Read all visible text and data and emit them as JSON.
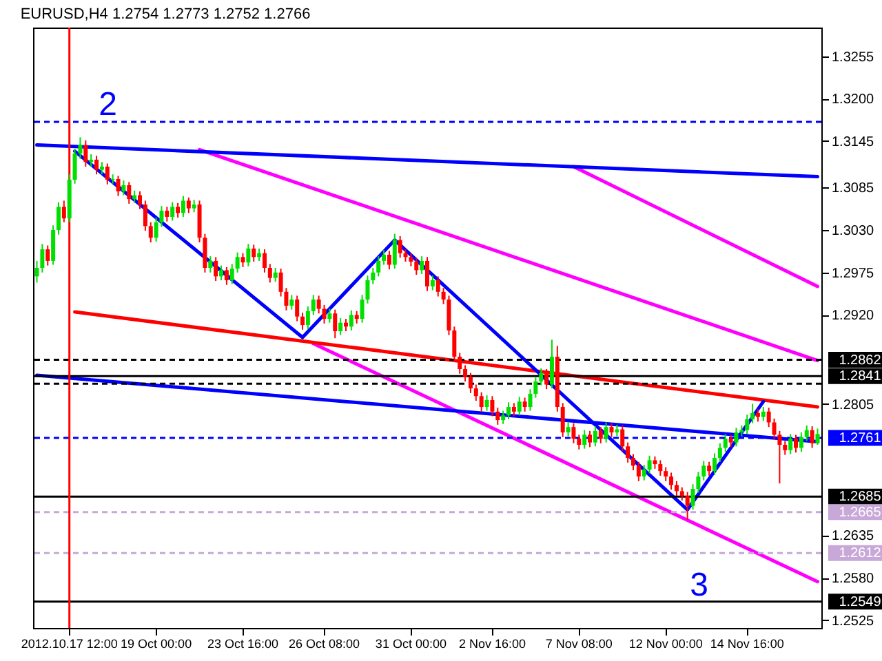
{
  "chart_data": {
    "type": "candlestick",
    "title": "EURUSD,H4  1.2754 1.2773 1.2752 1.2766",
    "categories": [
      null,
      null,
      null,
      null,
      null,
      null,
      "2012.10.17 12:00",
      null,
      null,
      null,
      null,
      null,
      null,
      null,
      null,
      null,
      null,
      null,
      null,
      null,
      null,
      null,
      "19 Oct 00:00",
      null,
      null,
      null,
      null,
      null,
      null,
      null,
      null,
      null,
      null,
      null,
      null,
      null,
      null,
      null,
      "23 Oct 16:00",
      null,
      null,
      null,
      null,
      null,
      null,
      null,
      null,
      null,
      null,
      null,
      null,
      null,
      null,
      "26 Oct 08:00",
      null,
      null,
      null,
      null,
      null,
      null,
      null,
      null,
      null,
      null,
      null,
      null,
      null,
      null,
      null,
      "31 Oct 00:00",
      null,
      null,
      null,
      null,
      null,
      null,
      null,
      null,
      null,
      null,
      null,
      null,
      null,
      null,
      "2 Nov 16:00",
      null,
      null,
      null,
      null,
      null,
      null,
      null,
      null,
      null,
      null,
      null,
      null,
      null,
      null,
      null,
      "7 Nov 08:00",
      null,
      null,
      null,
      null,
      null,
      null,
      null,
      null,
      null,
      null,
      null,
      null,
      null,
      null,
      null,
      "12 Nov 00:00",
      null,
      null,
      null,
      null,
      null,
      null,
      null,
      null,
      null,
      null,
      null,
      null,
      null,
      null,
      "14 Nov 16:00",
      null,
      null,
      null,
      null,
      null,
      null,
      null,
      null,
      null,
      null,
      null,
      null,
      null
    ],
    "ohlc": [
      [
        1.297,
        1.299,
        1.2962,
        1.2981
      ],
      [
        1.2981,
        1.3012,
        1.2975,
        1.3005
      ],
      [
        1.3005,
        1.301,
        1.2984,
        1.299
      ],
      [
        1.299,
        1.3036,
        1.2985,
        1.303
      ],
      [
        1.303,
        1.3066,
        1.3024,
        1.306
      ],
      [
        1.306,
        1.3068,
        1.304,
        1.3045
      ],
      [
        1.3045,
        1.3102,
        1.304,
        1.3095
      ],
      [
        1.3095,
        1.3135,
        1.309,
        1.3129
      ],
      [
        1.3129,
        1.315,
        1.3122,
        1.314
      ],
      [
        1.314,
        1.3146,
        1.3112,
        1.3118
      ],
      [
        1.3118,
        1.3128,
        1.3112,
        1.3121
      ],
      [
        1.3121,
        1.3126,
        1.3102,
        1.3108
      ],
      [
        1.3108,
        1.3118,
        1.3102,
        1.3112
      ],
      [
        1.3112,
        1.3116,
        1.3089,
        1.3095
      ],
      [
        1.3095,
        1.3102,
        1.309,
        1.3096
      ],
      [
        1.3096,
        1.31,
        1.3074,
        1.308
      ],
      [
        1.308,
        1.3094,
        1.3075,
        1.3088
      ],
      [
        1.3088,
        1.3092,
        1.3064,
        1.307
      ],
      [
        1.307,
        1.3081,
        1.3065,
        1.3075
      ],
      [
        1.3075,
        1.308,
        1.3057,
        1.3063
      ],
      [
        1.3063,
        1.3068,
        1.3029,
        1.3035
      ],
      [
        1.3035,
        1.304,
        1.3014,
        1.302
      ],
      [
        1.302,
        1.3046,
        1.3015,
        1.304
      ],
      [
        1.304,
        1.3061,
        1.3034,
        1.3055
      ],
      [
        1.3055,
        1.306,
        1.3041,
        1.3047
      ],
      [
        1.3047,
        1.3066,
        1.3042,
        1.306
      ],
      [
        1.306,
        1.3065,
        1.3046,
        1.3052
      ],
      [
        1.3052,
        1.3074,
        1.3047,
        1.3068
      ],
      [
        1.3068,
        1.3072,
        1.3052,
        1.3058
      ],
      [
        1.3058,
        1.3069,
        1.3053,
        1.3063
      ],
      [
        1.3063,
        1.3068,
        1.3014,
        1.302
      ],
      [
        1.302,
        1.3025,
        1.2975,
        1.2981
      ],
      [
        1.2981,
        1.2996,
        1.2975,
        1.299
      ],
      [
        1.299,
        1.2995,
        1.2964,
        1.297
      ],
      [
        1.297,
        1.2984,
        1.2965,
        1.2978
      ],
      [
        1.2978,
        1.2982,
        1.2959,
        1.2965
      ],
      [
        1.2965,
        1.2986,
        1.296,
        1.298
      ],
      [
        1.298,
        1.3001,
        1.2975,
        1.2995
      ],
      [
        1.2995,
        1.3,
        1.2982,
        1.2988
      ],
      [
        1.2988,
        1.3012,
        1.2983,
        1.3006
      ],
      [
        1.3006,
        1.3011,
        1.2989,
        1.2995
      ],
      [
        1.2995,
        1.3006,
        1.299,
        1.3
      ],
      [
        1.3,
        1.3005,
        1.2975,
        1.2981
      ],
      [
        1.2981,
        1.2986,
        1.2962,
        1.2968
      ],
      [
        1.2968,
        1.2981,
        1.2963,
        1.2975
      ],
      [
        1.2975,
        1.298,
        1.2944,
        1.295
      ],
      [
        1.295,
        1.2955,
        1.2926,
        1.2932
      ],
      [
        1.2932,
        1.2946,
        1.2927,
        1.294
      ],
      [
        1.294,
        1.2945,
        1.2912,
        1.2918
      ],
      [
        1.2918,
        1.2923,
        1.2901,
        1.2907
      ],
      [
        1.2907,
        1.2931,
        1.2902,
        1.2925
      ],
      [
        1.2925,
        1.2946,
        1.292,
        1.294
      ],
      [
        1.294,
        1.2945,
        1.2922,
        1.2928
      ],
      [
        1.2928,
        1.2933,
        1.2909,
        1.2915
      ],
      [
        1.2915,
        1.2928,
        1.291,
        1.2922
      ],
      [
        1.2922,
        1.2927,
        1.289,
        1.2899
      ],
      [
        1.2899,
        1.2916,
        1.2894,
        1.291
      ],
      [
        1.291,
        1.2915,
        1.2899,
        1.2905
      ],
      [
        1.2905,
        1.2926,
        1.29,
        1.292
      ],
      [
        1.292,
        1.2925,
        1.2909,
        1.2915
      ],
      [
        1.2915,
        1.2946,
        1.291,
        1.294
      ],
      [
        1.294,
        1.2971,
        1.2935,
        1.2965
      ],
      [
        1.2965,
        1.2981,
        1.296,
        1.2975
      ],
      [
        1.2975,
        1.2996,
        1.297,
        1.299
      ],
      [
        1.299,
        1.3004,
        1.2985,
        1.2998
      ],
      [
        1.2998,
        1.3003,
        1.2979,
        1.2985
      ],
      [
        1.2985,
        1.3025,
        1.298,
        1.3017
      ],
      [
        1.3017,
        1.3022,
        1.2994,
        1.3
      ],
      [
        1.3,
        1.3005,
        1.2989,
        1.2995
      ],
      [
        1.2995,
        1.3,
        1.2983,
        1.2989
      ],
      [
        1.2989,
        1.2994,
        1.2972,
        1.2978
      ],
      [
        1.2978,
        1.2996,
        1.2973,
        1.299
      ],
      [
        1.299,
        1.2995,
        1.2951,
        1.2957
      ],
      [
        1.2957,
        1.2971,
        1.2952,
        1.2965
      ],
      [
        1.2965,
        1.297,
        1.2944,
        1.295
      ],
      [
        1.295,
        1.2955,
        1.2934,
        1.294
      ],
      [
        1.294,
        1.2945,
        1.2894,
        1.29
      ],
      [
        1.29,
        1.2905,
        1.286,
        1.2866
      ],
      [
        1.2866,
        1.2871,
        1.2844,
        1.285
      ],
      [
        1.285,
        1.2855,
        1.2834,
        1.284
      ],
      [
        1.284,
        1.2845,
        1.2819,
        1.2825
      ],
      [
        1.2825,
        1.283,
        1.2809,
        1.2815
      ],
      [
        1.2815,
        1.282,
        1.2795,
        1.2801
      ],
      [
        1.2801,
        1.2816,
        1.2796,
        1.281
      ],
      [
        1.281,
        1.2815,
        1.2789,
        1.2795
      ],
      [
        1.2795,
        1.28,
        1.2778,
        1.2784
      ],
      [
        1.2784,
        1.2796,
        1.2779,
        1.279
      ],
      [
        1.279,
        1.2807,
        1.2785,
        1.2801
      ],
      [
        1.2801,
        1.2806,
        1.2789,
        1.2795
      ],
      [
        1.2795,
        1.2814,
        1.279,
        1.2808
      ],
      [
        1.2808,
        1.2813,
        1.2795,
        1.2801
      ],
      [
        1.2801,
        1.2824,
        1.2796,
        1.2818
      ],
      [
        1.2818,
        1.284,
        1.2813,
        1.2834
      ],
      [
        1.2834,
        1.2851,
        1.2829,
        1.2845
      ],
      [
        1.2845,
        1.285,
        1.2824,
        1.283
      ],
      [
        1.283,
        1.2888,
        1.2825,
        1.2866
      ],
      [
        1.2866,
        1.288,
        1.2795,
        1.2801
      ],
      [
        1.2801,
        1.2806,
        1.2762,
        1.2768
      ],
      [
        1.2768,
        1.2781,
        1.2763,
        1.2775
      ],
      [
        1.2775,
        1.278,
        1.2754,
        1.276
      ],
      [
        1.276,
        1.2765,
        1.2746,
        1.2752
      ],
      [
        1.2752,
        1.2771,
        1.2747,
        1.2765
      ],
      [
        1.2765,
        1.277,
        1.2749,
        1.2755
      ],
      [
        1.2755,
        1.2776,
        1.275,
        1.277
      ],
      [
        1.277,
        1.2775,
        1.2754,
        1.276
      ],
      [
        1.276,
        1.2781,
        1.2755,
        1.2775
      ],
      [
        1.2775,
        1.278,
        1.2762,
        1.2768
      ],
      [
        1.2768,
        1.2778,
        1.2763,
        1.2772
      ],
      [
        1.2772,
        1.2777,
        1.2744,
        1.275
      ],
      [
        1.275,
        1.2755,
        1.2729,
        1.2735
      ],
      [
        1.2735,
        1.274,
        1.2719,
        1.2725
      ],
      [
        1.2725,
        1.273,
        1.2705,
        1.2711
      ],
      [
        1.2711,
        1.2726,
        1.2706,
        1.272
      ],
      [
        1.272,
        1.2738,
        1.2715,
        1.2732
      ],
      [
        1.2732,
        1.2737,
        1.2721,
        1.2727
      ],
      [
        1.2727,
        1.2732,
        1.2712,
        1.2718
      ],
      [
        1.2718,
        1.2723,
        1.2705,
        1.2711
      ],
      [
        1.2711,
        1.2716,
        1.2694,
        1.27
      ],
      [
        1.27,
        1.2705,
        1.2686,
        1.2692
      ],
      [
        1.2692,
        1.2697,
        1.268,
        1.2686
      ],
      [
        1.2686,
        1.2691,
        1.2655,
        1.2673
      ],
      [
        1.2673,
        1.2701,
        1.2668,
        1.2695
      ],
      [
        1.2695,
        1.2717,
        1.269,
        1.2711
      ],
      [
        1.2711,
        1.2731,
        1.2706,
        1.2725
      ],
      [
        1.2725,
        1.273,
        1.2712,
        1.2718
      ],
      [
        1.2718,
        1.2741,
        1.2713,
        1.2735
      ],
      [
        1.2735,
        1.2754,
        1.273,
        1.2748
      ],
      [
        1.2748,
        1.2766,
        1.2743,
        1.276
      ],
      [
        1.276,
        1.2765,
        1.2749,
        1.2755
      ],
      [
        1.2755,
        1.2774,
        1.275,
        1.2768
      ],
      [
        1.2768,
        1.2777,
        1.2763,
        1.2771
      ],
      [
        1.2771,
        1.2791,
        1.2766,
        1.2785
      ],
      [
        1.2785,
        1.2805,
        1.278,
        1.2793
      ],
      [
        1.2793,
        1.2798,
        1.2782,
        1.2788
      ],
      [
        1.2788,
        1.2801,
        1.2783,
        1.2795
      ],
      [
        1.2795,
        1.28,
        1.2775,
        1.2781
      ],
      [
        1.2781,
        1.2786,
        1.2759,
        1.2765
      ],
      [
        1.2765,
        1.277,
        1.2702,
        1.2752
      ],
      [
        1.2752,
        1.2757,
        1.2739,
        1.2745
      ],
      [
        1.2745,
        1.2766,
        1.274,
        1.276
      ],
      [
        1.276,
        1.2765,
        1.2742,
        1.2748
      ],
      [
        1.2748,
        1.2768,
        1.2743,
        1.2762
      ],
      [
        1.2762,
        1.2777,
        1.2757,
        1.2771
      ],
      [
        1.2771,
        1.2776,
        1.2748,
        1.2754
      ],
      [
        1.2754,
        1.2773,
        1.2752,
        1.2766
      ]
    ],
    "series": [
      {
        "type": "line",
        "color": "#ff00ff",
        "values": [
          null,
          null,
          null,
          null,
          null,
          null,
          null,
          null,
          null,
          null,
          null,
          null,
          null,
          null,
          null,
          null,
          null,
          null,
          null,
          null,
          null,
          null,
          null,
          null,
          null,
          null,
          null,
          null,
          null,
          null,
          1.3134,
          null,
          null,
          null,
          null,
          null,
          null,
          null,
          null,
          null,
          null,
          null,
          null,
          null,
          null,
          null,
          null,
          null,
          null,
          null,
          null,
          null,
          null,
          null,
          null,
          null,
          null,
          null,
          null,
          null,
          null,
          null,
          null,
          null,
          null,
          null,
          null,
          null,
          null,
          null,
          null,
          null,
          null,
          null,
          null,
          null,
          null,
          null,
          null,
          null,
          null,
          null,
          null,
          null,
          null,
          null,
          null,
          null,
          null,
          null,
          null,
          null,
          null,
          null,
          null,
          null,
          null,
          null,
          null,
          null,
          null,
          null,
          null,
          null,
          null,
          null,
          null,
          null,
          null,
          null,
          null,
          null,
          null,
          null,
          null,
          null,
          null,
          null,
          null,
          null,
          null,
          null,
          null,
          null,
          null,
          null,
          null,
          null,
          null,
          null,
          null,
          null,
          null,
          null,
          null,
          null,
          null,
          null,
          null,
          null,
          null,
          null,
          null,
          null,
          1.2861
        ]
      },
      {
        "type": "line",
        "color": "#ff00ff",
        "values": [
          null,
          null,
          null,
          null,
          null,
          null,
          null,
          null,
          null,
          null,
          null,
          null,
          null,
          null,
          null,
          null,
          null,
          null,
          null,
          null,
          null,
          null,
          null,
          null,
          null,
          null,
          null,
          null,
          null,
          null,
          null,
          null,
          null,
          null,
          null,
          null,
          null,
          null,
          null,
          null,
          null,
          null,
          null,
          null,
          null,
          null,
          null,
          null,
          null,
          null,
          null,
          1.2883,
          null,
          null,
          null,
          null,
          null,
          null,
          null,
          null,
          null,
          null,
          null,
          null,
          null,
          null,
          null,
          null,
          null,
          null,
          null,
          null,
          null,
          null,
          null,
          null,
          null,
          null,
          null,
          null,
          null,
          null,
          null,
          null,
          null,
          null,
          null,
          null,
          null,
          null,
          null,
          null,
          null,
          null,
          null,
          null,
          null,
          null,
          null,
          null,
          null,
          null,
          null,
          null,
          null,
          null,
          null,
          null,
          null,
          null,
          null,
          null,
          null,
          null,
          null,
          null,
          null,
          null,
          null,
          null,
          null,
          null,
          null,
          null,
          null,
          null,
          null,
          null,
          null,
          null,
          null,
          null,
          null,
          null,
          null,
          null,
          null,
          null,
          null,
          null,
          null,
          null,
          null,
          null,
          1.2575
        ]
      },
      {
        "type": "line",
        "color": "#ff00ff",
        "values": [
          null,
          null,
          null,
          null,
          null,
          null,
          null,
          null,
          null,
          null,
          null,
          null,
          null,
          null,
          null,
          null,
          null,
          null,
          null,
          null,
          null,
          null,
          null,
          null,
          null,
          null,
          null,
          null,
          null,
          null,
          null,
          null,
          null,
          null,
          null,
          null,
          null,
          null,
          null,
          null,
          null,
          null,
          null,
          null,
          null,
          null,
          null,
          null,
          null,
          null,
          null,
          null,
          null,
          null,
          null,
          null,
          null,
          null,
          null,
          null,
          null,
          null,
          null,
          null,
          null,
          null,
          null,
          null,
          null,
          null,
          null,
          null,
          null,
          null,
          null,
          null,
          null,
          null,
          null,
          null,
          null,
          null,
          null,
          null,
          null,
          null,
          null,
          null,
          null,
          null,
          null,
          null,
          null,
          null,
          null,
          null,
          null,
          null,
          null,
          1.3112,
          null,
          null,
          null,
          null,
          null,
          null,
          null,
          null,
          null,
          null,
          null,
          null,
          null,
          null,
          null,
          null,
          null,
          null,
          null,
          null,
          null,
          null,
          null,
          null,
          null,
          null,
          null,
          null,
          null,
          null,
          null,
          null,
          null,
          null,
          null,
          null,
          null,
          null,
          null,
          null,
          null,
          null,
          null,
          null,
          1.2957
        ]
      },
      {
        "type": "line",
        "color": "#ff0000",
        "values": [
          null,
          null,
          null,
          null,
          null,
          null,
          null,
          1.2924,
          null,
          null,
          null,
          null,
          null,
          null,
          null,
          null,
          null,
          null,
          null,
          null,
          null,
          null,
          null,
          null,
          null,
          null,
          null,
          null,
          null,
          null,
          null,
          null,
          null,
          null,
          null,
          null,
          null,
          null,
          null,
          null,
          null,
          null,
          null,
          null,
          null,
          null,
          null,
          null,
          null,
          null,
          null,
          null,
          null,
          null,
          null,
          null,
          null,
          null,
          null,
          null,
          null,
          null,
          null,
          null,
          null,
          null,
          null,
          null,
          null,
          null,
          null,
          null,
          null,
          null,
          null,
          null,
          null,
          null,
          null,
          null,
          null,
          null,
          null,
          null,
          null,
          null,
          null,
          null,
          null,
          null,
          null,
          null,
          null,
          null,
          null,
          null,
          null,
          null,
          null,
          null,
          null,
          null,
          null,
          null,
          null,
          null,
          null,
          null,
          null,
          null,
          null,
          null,
          null,
          null,
          null,
          null,
          null,
          null,
          null,
          null,
          null,
          null,
          null,
          null,
          null,
          null,
          null,
          null,
          null,
          null,
          null,
          null,
          null,
          null,
          null,
          null,
          null,
          null,
          null,
          null,
          null,
          null,
          null,
          null,
          1.2801
        ]
      },
      {
        "type": "line",
        "color": "#0000ff",
        "values": [
          1.314,
          null,
          null,
          null,
          null,
          null,
          null,
          null,
          null,
          null,
          null,
          null,
          null,
          null,
          null,
          null,
          null,
          null,
          null,
          null,
          null,
          null,
          null,
          null,
          null,
          null,
          null,
          null,
          null,
          null,
          null,
          null,
          null,
          null,
          null,
          null,
          null,
          null,
          null,
          null,
          null,
          null,
          null,
          null,
          null,
          null,
          null,
          null,
          null,
          null,
          null,
          null,
          null,
          null,
          null,
          null,
          null,
          null,
          null,
          null,
          null,
          null,
          null,
          null,
          null,
          null,
          null,
          null,
          null,
          null,
          null,
          null,
          null,
          null,
          null,
          null,
          null,
          null,
          null,
          null,
          null,
          null,
          null,
          null,
          null,
          null,
          null,
          null,
          null,
          null,
          null,
          null,
          null,
          null,
          null,
          null,
          null,
          null,
          null,
          null,
          null,
          null,
          null,
          null,
          null,
          null,
          null,
          null,
          null,
          null,
          null,
          null,
          null,
          null,
          null,
          null,
          null,
          null,
          null,
          null,
          null,
          null,
          null,
          null,
          null,
          null,
          null,
          null,
          null,
          null,
          null,
          null,
          null,
          null,
          null,
          null,
          null,
          null,
          null,
          null,
          null,
          null,
          null,
          null,
          1.3099
        ]
      },
      {
        "type": "line",
        "color": "#0000ff",
        "values": [
          1.2842,
          null,
          null,
          null,
          null,
          null,
          null,
          null,
          null,
          null,
          null,
          null,
          null,
          null,
          null,
          null,
          null,
          null,
          null,
          null,
          null,
          null,
          null,
          null,
          null,
          null,
          null,
          null,
          null,
          null,
          null,
          null,
          null,
          null,
          null,
          null,
          null,
          null,
          null,
          null,
          null,
          null,
          null,
          null,
          null,
          null,
          null,
          null,
          null,
          null,
          null,
          null,
          null,
          null,
          null,
          null,
          null,
          null,
          null,
          null,
          null,
          null,
          null,
          null,
          null,
          null,
          null,
          null,
          null,
          null,
          null,
          null,
          null,
          null,
          null,
          null,
          null,
          null,
          null,
          null,
          null,
          null,
          null,
          null,
          null,
          null,
          null,
          null,
          null,
          null,
          null,
          null,
          null,
          null,
          null,
          null,
          null,
          null,
          null,
          null,
          null,
          null,
          null,
          null,
          null,
          null,
          null,
          null,
          null,
          null,
          null,
          null,
          null,
          null,
          null,
          null,
          null,
          null,
          null,
          null,
          null,
          null,
          null,
          null,
          null,
          null,
          null,
          null,
          null,
          null,
          null,
          null,
          null,
          null,
          null,
          null,
          null,
          null,
          null,
          null,
          null,
          null,
          null,
          null,
          1.2756
        ]
      },
      {
        "type": "line",
        "color": "#0000ff",
        "values": [
          null,
          null,
          null,
          null,
          null,
          null,
          null,
          1.3132,
          null,
          null,
          null,
          null,
          null,
          null,
          null,
          null,
          null,
          null,
          null,
          null,
          null,
          null,
          null,
          null,
          null,
          null,
          null,
          null,
          null,
          null,
          null,
          null,
          null,
          null,
          null,
          null,
          null,
          null,
          null,
          null,
          null,
          null,
          null,
          null,
          null,
          null,
          null,
          null,
          null,
          1.2891,
          null,
          null,
          null,
          null,
          null,
          null,
          null,
          null,
          null,
          null,
          null,
          null,
          null,
          null,
          null,
          null,
          1.3017,
          null,
          null,
          null,
          null,
          null,
          null,
          null,
          null,
          null,
          null,
          null,
          null,
          null,
          null,
          null,
          null,
          null,
          null,
          null,
          null,
          null,
          null,
          null,
          null,
          null,
          null,
          null,
          null,
          null,
          null,
          null,
          null,
          null,
          null,
          null,
          null,
          null,
          null,
          null,
          null,
          null,
          null,
          null,
          null,
          null,
          null,
          null,
          null,
          null,
          null,
          null,
          null,
          null,
          1.2668,
          null,
          null,
          null,
          null,
          null,
          null,
          null,
          null,
          null,
          null,
          null,
          null,
          null,
          1.2808,
          null,
          null,
          null,
          null,
          null,
          null,
          null,
          null,
          null,
          null
        ]
      }
    ],
    "ylim": [
      1.2515,
      1.3292
    ],
    "yticks": [
      1.3255,
      {
        "value": 1.32,
        "label": "1.3200"
      },
      1.3145,
      1.3085,
      {
        "value": 1.303,
        "label": "1.3030"
      },
      1.2975,
      {
        "value": 1.292,
        "label": "1.2920"
      },
      1.2805,
      1.2635,
      {
        "value": 1.258,
        "label": "1.2580"
      },
      1.2525
    ],
    "ref_lines": [
      {
        "axis": "y",
        "value": 1.317,
        "color": "#0000ff",
        "line_style": "dashed"
      },
      {
        "axis": "y",
        "value": 1.2862,
        "label": "1.2862",
        "color": "#000000",
        "line_style": "dashed"
      },
      {
        "axis": "y",
        "value": 1.2841,
        "label": "1.2841",
        "color": "#000000",
        "line_style": "solid"
      },
      {
        "axis": "y",
        "value": 1.2831,
        "color": "#000000",
        "line_style": "dashed"
      },
      {
        "axis": "y",
        "value": 1.2761,
        "label": "1.2761",
        "color": "#0000ff",
        "line_style": "dashed"
      },
      {
        "axis": "y",
        "value": 1.2685,
        "label": "1.2685",
        "color": "#000000",
        "line_style": "solid"
      },
      {
        "axis": "y",
        "value": 1.2665,
        "label": "1.2665",
        "color": "#c8a8d8",
        "line_style": "dashed"
      },
      {
        "axis": "y",
        "value": 1.2612,
        "label": "1.2612",
        "color": "#c8a8d8",
        "line_style": "dashed"
      },
      {
        "axis": "y",
        "value": 1.2549,
        "label": "1.2549",
        "color": "#000000",
        "line_style": "solid"
      },
      {
        "axis": "x",
        "value": "2012.10.17 12:00",
        "color": "#ff0000",
        "line_style": "solid"
      }
    ],
    "annotations": [
      "2",
      "3"
    ]
  }
}
